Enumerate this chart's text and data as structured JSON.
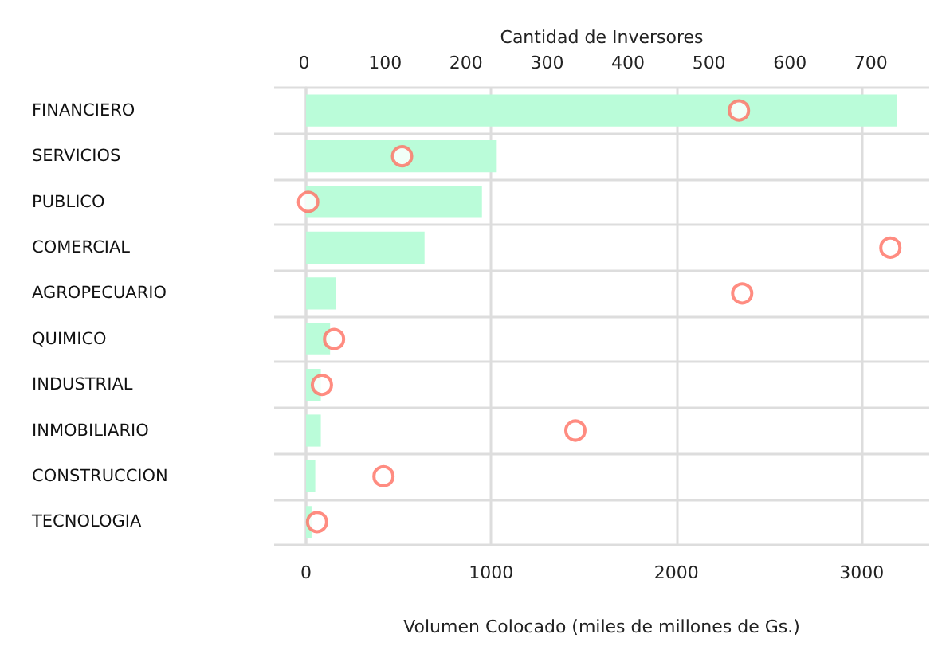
{
  "chart_data": {
    "type": "bar",
    "orientation": "horizontal",
    "categories": [
      "FINANCIERO",
      "SERVICIOS",
      "PUBLICO",
      "COMERCIAL",
      "AGROPECUARIO",
      "QUIMICO",
      "INDUSTRIAL",
      "INMOBILIARIO",
      "CONSTRUCCION",
      "TECNOLOGIA"
    ],
    "series": [
      {
        "color": "#bafcd9",
        "values": [
          3190,
          1030,
          950,
          640,
          160,
          130,
          80,
          80,
          50,
          30
        ]
      },
      {
        "type": "scatter",
        "axis": "x2",
        "color": "#ff6f61",
        "marker": "circle",
        "values": [
          537,
          121,
          5,
          724,
          541,
          37,
          22,
          335,
          98,
          16
        ]
      }
    ],
    "xlabel": "Volumen Colocado (miles de millones de Gs.)",
    "x2label": "Cantidad de Inversores",
    "xlim": [
      -172,
      3365
    ],
    "xticks": [
      0,
      1000,
      2000,
      3000
    ],
    "x2lim": [
      -37,
      772
    ],
    "x2ticks": [
      0,
      100,
      200,
      300,
      400,
      500,
      600,
      700
    ],
    "grid": true
  }
}
